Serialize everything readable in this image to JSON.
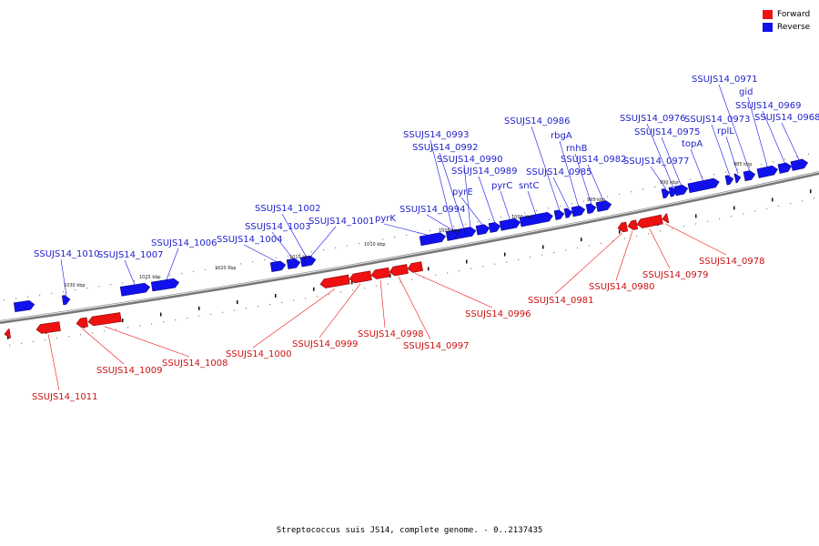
{
  "title": "Streptococcus suis JS14, complete genome. - 0..2137435",
  "colors": {
    "forward": "#ee1111",
    "reverse": "#1111ee"
  },
  "legend": [
    {
      "label": "Forward",
      "color": "#ee1111"
    },
    {
      "label": "Reverse",
      "color": "#1111ee"
    }
  ],
  "scale_labels": [
    "1030 kbp",
    "1025 kbp",
    "1020 kbp",
    "1015 kbp",
    "1010 kbp",
    "1005 kbp",
    "1000 kbp",
    "995 kbp",
    "990 kbp",
    "985 kbp"
  ],
  "genes": [
    {
      "label": "SSUJS14_1010",
      "strand": "reverse"
    },
    {
      "label": "SSUJS14_1007",
      "strand": "reverse"
    },
    {
      "label": "SSUJS14_1006",
      "strand": "reverse"
    },
    {
      "label": "SSUJS14_1004",
      "strand": "reverse"
    },
    {
      "label": "SSUJS14_1003",
      "strand": "reverse"
    },
    {
      "label": "SSUJS14_1002",
      "strand": "reverse"
    },
    {
      "label": "SSUJS14_1001",
      "strand": "reverse"
    },
    {
      "label": "pyrK",
      "strand": "reverse"
    },
    {
      "label": "SSUJS14_0994",
      "strand": "reverse"
    },
    {
      "label": "SSUJS14_0993",
      "strand": "reverse"
    },
    {
      "label": "SSUJS14_0992",
      "strand": "reverse"
    },
    {
      "label": "SSUJS14_0990",
      "strand": "reverse"
    },
    {
      "label": "pyrE",
      "strand": "reverse"
    },
    {
      "label": "SSUJS14_0989",
      "strand": "reverse"
    },
    {
      "label": "pyrC",
      "strand": "reverse"
    },
    {
      "label": "sntC",
      "strand": "reverse"
    },
    {
      "label": "SSUJS14_0986",
      "strand": "reverse"
    },
    {
      "label": "SSUJS14_0985",
      "strand": "reverse"
    },
    {
      "label": "rbgA",
      "strand": "reverse"
    },
    {
      "label": "rnhB",
      "strand": "reverse"
    },
    {
      "label": "SSUJS14_0982",
      "strand": "reverse"
    },
    {
      "label": "SSUJS14_0977",
      "strand": "reverse"
    },
    {
      "label": "SSUJS14_0976",
      "strand": "reverse"
    },
    {
      "label": "SSUJS14_0975",
      "strand": "reverse"
    },
    {
      "label": "topA",
      "strand": "reverse"
    },
    {
      "label": "SSUJS14_0973",
      "strand": "reverse"
    },
    {
      "label": "rplL",
      "strand": "reverse"
    },
    {
      "label": "SSUJS14_0971",
      "strand": "reverse"
    },
    {
      "label": "gid",
      "strand": "reverse"
    },
    {
      "label": "SSUJS14_0969",
      "strand": "reverse"
    },
    {
      "label": "SSUJS14_0968",
      "strand": "reverse"
    },
    {
      "label": "SSUJS14_1011",
      "strand": "forward"
    },
    {
      "label": "SSUJS14_1009",
      "strand": "forward"
    },
    {
      "label": "SSUJS14_1008",
      "strand": "forward"
    },
    {
      "label": "SSUJS14_1000",
      "strand": "forward"
    },
    {
      "label": "SSUJS14_0999",
      "strand": "forward"
    },
    {
      "label": "SSUJS14_0998",
      "strand": "forward"
    },
    {
      "label": "SSUJS14_0997",
      "strand": "forward"
    },
    {
      "label": "SSUJS14_0996",
      "strand": "forward"
    },
    {
      "label": "SSUJS14_0981",
      "strand": "forward"
    },
    {
      "label": "SSUJS14_0980",
      "strand": "forward"
    },
    {
      "label": "SSUJS14_0979",
      "strand": "forward"
    },
    {
      "label": "SSUJS14_0978",
      "strand": "forward"
    }
  ]
}
